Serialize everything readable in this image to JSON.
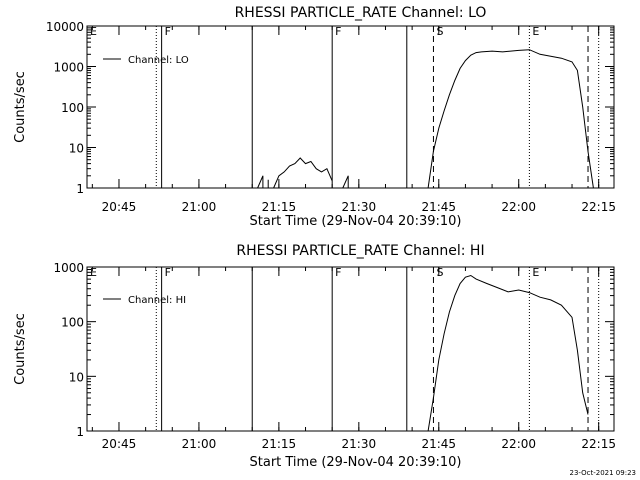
{
  "footer": {
    "timestamp": "23-Oct-2021 09:23"
  },
  "chart_data": [
    {
      "type": "line",
      "title": "RHESSI PARTICLE_RATE Channel: LO",
      "xlabel": "Start Time (29-Nov-04 20:39:10)",
      "ylabel": "Counts/sec",
      "y_scale": "log",
      "ylim": [
        1,
        10000
      ],
      "xlim_minutes_after_2039": [
        0,
        99
      ],
      "x_tick_labels": [
        "20:45",
        "21:00",
        "21:15",
        "21:30",
        "21:45",
        "22:00",
        "22:15"
      ],
      "y_tick_labels": [
        "1",
        "10",
        "100",
        "1000",
        "10000"
      ],
      "legend": {
        "entries": [
          "Channel: LO"
        ],
        "position": "top-left"
      },
      "grid": false,
      "event_markers": [
        {
          "time": "20:39",
          "label": "E",
          "style": "dotted"
        },
        {
          "time": "20:52",
          "label": "",
          "style": "dotted"
        },
        {
          "time": "20:53",
          "label": "F",
          "style": "solid"
        },
        {
          "time": "21:10",
          "label": "",
          "style": "solid"
        },
        {
          "time": "21:25",
          "label": "F",
          "style": "solid"
        },
        {
          "time": "21:39",
          "label": "",
          "style": "solid"
        },
        {
          "time": "21:44",
          "label": "S",
          "style": "dashed"
        },
        {
          "time": "22:02",
          "label": "E",
          "style": "dotted"
        },
        {
          "time": "22:13",
          "label": "",
          "style": "dashed"
        },
        {
          "time": "22:15",
          "label": "",
          "style": "dotted"
        }
      ],
      "series": [
        {
          "name": "Channel: LO",
          "segments": [
            {
              "x": [
                "21:11",
                "21:12",
                "21:12",
                "21:13",
                "21:13"
              ],
              "y": [
                1,
                2,
                1,
                1,
                1.6
              ]
            },
            {
              "x": [
                "21:14",
                "21:15",
                "21:16",
                "21:17",
                "21:18",
                "21:19",
                "21:20",
                "21:21",
                "21:22",
                "21:23",
                "21:24",
                "21:25"
              ],
              "y": [
                1,
                2,
                2.5,
                3.5,
                4,
                5.5,
                4,
                4.5,
                3,
                2.5,
                3,
                1.5
              ]
            },
            {
              "x": [
                "21:27",
                "21:28",
                "21:28"
              ],
              "y": [
                1,
                2,
                1
              ]
            },
            {
              "x": [
                "21:43",
                "21:44",
                "21:45",
                "21:46",
                "21:47",
                "21:48",
                "21:49",
                "21:50",
                "21:51",
                "21:52",
                "21:53",
                "21:55",
                "21:57",
                "22:00",
                "22:02",
                "22:04",
                "22:06",
                "22:08",
                "22:10",
                "22:11",
                "22:12",
                "22:13",
                "22:14"
              ],
              "y": [
                1,
                8,
                30,
                80,
                200,
                450,
                900,
                1400,
                1900,
                2200,
                2300,
                2400,
                2300,
                2500,
                2600,
                2000,
                1800,
                1600,
                1300,
                800,
                100,
                8,
                1
              ]
            }
          ]
        }
      ]
    },
    {
      "type": "line",
      "title": "RHESSI PARTICLE_RATE Channel: HI",
      "xlabel": "Start Time (29-Nov-04 20:39:10)",
      "ylabel": "Counts/sec",
      "y_scale": "log",
      "ylim": [
        1,
        1000
      ],
      "xlim_minutes_after_2039": [
        0,
        99
      ],
      "x_tick_labels": [
        "20:45",
        "21:00",
        "21:15",
        "21:30",
        "21:45",
        "22:00",
        "22:15"
      ],
      "y_tick_labels": [
        "1",
        "10",
        "100",
        "1000"
      ],
      "legend": {
        "entries": [
          "Channel: HI"
        ],
        "position": "top-left"
      },
      "grid": false,
      "event_markers": [
        {
          "time": "20:39",
          "label": "E",
          "style": "dotted"
        },
        {
          "time": "20:52",
          "label": "",
          "style": "dotted"
        },
        {
          "time": "20:53",
          "label": "F",
          "style": "solid"
        },
        {
          "time": "21:10",
          "label": "",
          "style": "solid"
        },
        {
          "time": "21:25",
          "label": "F",
          "style": "solid"
        },
        {
          "time": "21:39",
          "label": "",
          "style": "solid"
        },
        {
          "time": "21:44",
          "label": "S",
          "style": "dashed"
        },
        {
          "time": "22:02",
          "label": "E",
          "style": "dotted"
        },
        {
          "time": "22:13",
          "label": "",
          "style": "dashed"
        },
        {
          "time": "22:15",
          "label": "",
          "style": "dotted"
        }
      ],
      "series": [
        {
          "name": "Channel: HI",
          "segments": [
            {
              "x": [
                "21:43",
                "21:44",
                "21:45",
                "21:46",
                "21:47",
                "21:48",
                "21:49",
                "21:50",
                "21:51",
                "21:52",
                "21:54",
                "21:56",
                "21:58",
                "22:00",
                "22:02",
                "22:04",
                "22:06",
                "22:08",
                "22:10",
                "22:11",
                "22:12",
                "22:13"
              ],
              "y": [
                1,
                4,
                20,
                60,
                150,
                300,
                500,
                650,
                700,
                600,
                500,
                420,
                350,
                380,
                340,
                280,
                250,
                200,
                120,
                30,
                5,
                2
              ]
            }
          ]
        }
      ]
    }
  ]
}
